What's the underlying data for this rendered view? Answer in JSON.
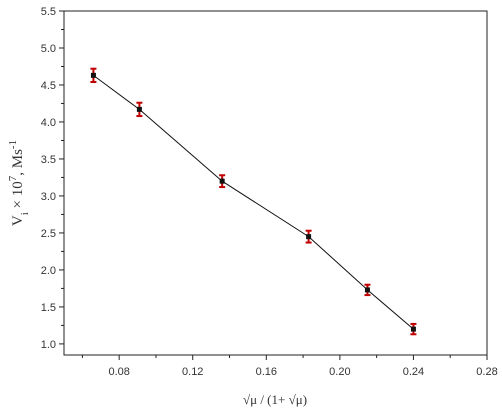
{
  "chart_data": {
    "type": "scatter",
    "title": "",
    "xlabel": "√μ / (1+ √μ)",
    "ylabel": {
      "base": "V",
      "sub": "i",
      "times": " × 10",
      "sup": "7",
      "unit": ", Ms",
      "unit_sup": "-1"
    },
    "xlim": [
      0.05,
      0.28
    ],
    "ylim": [
      0.85,
      5.5
    ],
    "x_ticks": [
      0.08,
      0.12,
      0.16,
      0.2,
      0.24,
      0.28
    ],
    "x_tick_labels": [
      "0.08",
      "0.12",
      "0.16",
      "0.20",
      "0.24",
      "0.28"
    ],
    "y_ticks": [
      1.0,
      1.5,
      2.0,
      2.5,
      3.0,
      3.5,
      4.0,
      4.5,
      5.0,
      5.5
    ],
    "y_tick_labels": [
      "1.0",
      "1.5",
      "2.0",
      "2.5",
      "3.0",
      "3.5",
      "4.0",
      "4.5",
      "5.0",
      "5.5"
    ],
    "grid": false,
    "legend": "none",
    "series": [
      {
        "x": [
          0.066,
          0.091,
          0.136,
          0.183,
          0.215,
          0.24
        ],
        "y": [
          4.63,
          4.17,
          3.2,
          2.45,
          1.73,
          1.2
        ],
        "y_error": [
          0.09,
          0.09,
          0.08,
          0.08,
          0.07,
          0.07
        ],
        "marker_color": "#111111",
        "line_color": "#111111",
        "error_color": "#c00000"
      }
    ]
  }
}
